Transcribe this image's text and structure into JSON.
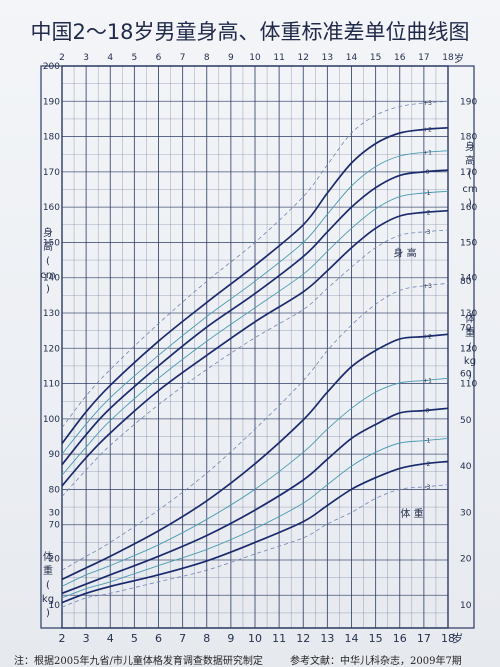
{
  "title": "中国2～18岁男童身高、体重标准差单位曲线图",
  "year_unit": "岁",
  "height_label": [
    "身",
    "高",
    "(",
    "cm",
    ")"
  ],
  "weight_label": [
    "体",
    "重",
    "(",
    "kg",
    ")"
  ],
  "height_curve_label": "身 高",
  "weight_curve_label": "体 重",
  "footer_left": "注：根据2005年九省/市儿童体格发育调查数据研究制定",
  "footer_right": "参考文献：中华儿科杂志，2009年7期",
  "colors": {
    "grid": "#2c3b63",
    "curve_main": "#1a2a6e",
    "curve_teal": "#4a9ab0",
    "curve_dashed": "#6f86b5",
    "title": "#202a4a"
  },
  "chart_data": {
    "type": "line",
    "x_ticks": [
      "2",
      "3",
      "4",
      "5",
      "6",
      "7",
      "8",
      "9",
      "10",
      "11",
      "12",
      "13",
      "14",
      "15",
      "16",
      "17",
      "18"
    ],
    "x_range": [
      2,
      18
    ],
    "height_axis": {
      "range": [
        60,
        200
      ],
      "tick_labels": [
        "200",
        "190",
        "180",
        "170",
        "160",
        "150",
        "140",
        "130",
        "120",
        "110",
        "100",
        "90",
        "80",
        "70"
      ],
      "right_tick_labels": [
        "190",
        "180",
        "170",
        "160",
        "150",
        "140",
        "130",
        "120",
        "110"
      ]
    },
    "weight_axis": {
      "range": [
        5,
        85
      ],
      "right_tick_labels": [
        "80",
        "70",
        "60",
        "50",
        "40",
        "30",
        "20",
        "10"
      ],
      "left_tick_labels": [
        "30",
        "20",
        "10"
      ]
    },
    "height_series": [
      {
        "sd": "+3",
        "style": "dashed",
        "points": [
          [
            2,
            97.5
          ],
          [
            3,
            106.5
          ],
          [
            4,
            114
          ],
          [
            6,
            127
          ],
          [
            8,
            139
          ],
          [
            10,
            150
          ],
          [
            12,
            163
          ],
          [
            13,
            172
          ],
          [
            14,
            181
          ],
          [
            15,
            186
          ],
          [
            16,
            188.5
          ],
          [
            17,
            189.5
          ],
          [
            18,
            190
          ]
        ]
      },
      {
        "sd": "+2",
        "style": "main",
        "points": [
          [
            2,
            93
          ],
          [
            3,
            102
          ],
          [
            4,
            109.5
          ],
          [
            6,
            122
          ],
          [
            8,
            133
          ],
          [
            10,
            143.5
          ],
          [
            12,
            155
          ],
          [
            13,
            164
          ],
          [
            14,
            172.5
          ],
          [
            15,
            178
          ],
          [
            16,
            181
          ],
          [
            17,
            182
          ],
          [
            18,
            182.5
          ]
        ]
      },
      {
        "sd": "+1",
        "style": "teal",
        "points": [
          [
            2,
            90
          ],
          [
            3,
            98.5
          ],
          [
            4,
            106
          ],
          [
            6,
            118
          ],
          [
            8,
            129
          ],
          [
            10,
            139
          ],
          [
            12,
            150
          ],
          [
            13,
            158
          ],
          [
            14,
            166
          ],
          [
            15,
            171.5
          ],
          [
            16,
            174.5
          ],
          [
            17,
            175.5
          ],
          [
            18,
            176
          ]
        ]
      },
      {
        "sd": "0",
        "style": "main",
        "points": [
          [
            2,
            87
          ],
          [
            3,
            95.5
          ],
          [
            4,
            103
          ],
          [
            6,
            115
          ],
          [
            8,
            126
          ],
          [
            10,
            135.5
          ],
          [
            12,
            146
          ],
          [
            13,
            153
          ],
          [
            14,
            160
          ],
          [
            15,
            165.5
          ],
          [
            16,
            169
          ],
          [
            17,
            170
          ],
          [
            18,
            170.5
          ]
        ]
      },
      {
        "sd": "-1",
        "style": "teal",
        "points": [
          [
            2,
            84
          ],
          [
            3,
            92
          ],
          [
            4,
            99.5
          ],
          [
            6,
            111.5
          ],
          [
            8,
            122
          ],
          [
            10,
            131.5
          ],
          [
            12,
            141
          ],
          [
            13,
            147.5
          ],
          [
            14,
            154
          ],
          [
            15,
            159.5
          ],
          [
            16,
            163
          ],
          [
            17,
            164
          ],
          [
            18,
            164.5
          ]
        ]
      },
      {
        "sd": "-2",
        "style": "main",
        "points": [
          [
            2,
            81
          ],
          [
            3,
            89
          ],
          [
            4,
            96
          ],
          [
            6,
            108
          ],
          [
            8,
            118
          ],
          [
            10,
            127.5
          ],
          [
            12,
            136
          ],
          [
            13,
            142
          ],
          [
            14,
            148.5
          ],
          [
            15,
            154
          ],
          [
            16,
            157.5
          ],
          [
            17,
            158.5
          ],
          [
            18,
            159
          ]
        ]
      },
      {
        "sd": "-3",
        "style": "dashed",
        "points": [
          [
            2,
            78
          ],
          [
            3,
            85.5
          ],
          [
            4,
            92.5
          ],
          [
            6,
            104
          ],
          [
            8,
            114
          ],
          [
            10,
            123
          ],
          [
            12,
            131
          ],
          [
            13,
            137
          ],
          [
            14,
            143
          ],
          [
            15,
            148.5
          ],
          [
            16,
            152
          ],
          [
            17,
            153
          ],
          [
            18,
            153.5
          ]
        ]
      }
    ],
    "weight_series": [
      {
        "sd": "+3",
        "style": "dashed",
        "points": [
          [
            2,
            17.5
          ],
          [
            3,
            20.5
          ],
          [
            4,
            23.5
          ],
          [
            6,
            30.5
          ],
          [
            8,
            38.5
          ],
          [
            10,
            48
          ],
          [
            12,
            58.5
          ],
          [
            13,
            65
          ],
          [
            14,
            70.5
          ],
          [
            15,
            75
          ],
          [
            16,
            78
          ],
          [
            17,
            79
          ],
          [
            18,
            79.5
          ]
        ]
      },
      {
        "sd": "+2",
        "style": "main",
        "points": [
          [
            2,
            15.5
          ],
          [
            3,
            18
          ],
          [
            4,
            20.5
          ],
          [
            6,
            26
          ],
          [
            8,
            32.5
          ],
          [
            10,
            40.5
          ],
          [
            12,
            50
          ],
          [
            13,
            56
          ],
          [
            14,
            61.5
          ],
          [
            15,
            65
          ],
          [
            16,
            67.5
          ],
          [
            17,
            68
          ],
          [
            18,
            68.5
          ]
        ]
      },
      {
        "sd": "+1",
        "style": "teal",
        "points": [
          [
            2,
            14
          ],
          [
            3,
            16.5
          ],
          [
            4,
            18.5
          ],
          [
            6,
            23
          ],
          [
            8,
            28.5
          ],
          [
            10,
            35
          ],
          [
            12,
            43
          ],
          [
            13,
            48
          ],
          [
            14,
            52.5
          ],
          [
            15,
            56
          ],
          [
            16,
            58
          ],
          [
            17,
            58.5
          ],
          [
            18,
            59
          ]
        ]
      },
      {
        "sd": "0",
        "style": "main",
        "points": [
          [
            2,
            12.5
          ],
          [
            3,
            14.5
          ],
          [
            4,
            16.5
          ],
          [
            6,
            20.5
          ],
          [
            8,
            25
          ],
          [
            10,
            30.5
          ],
          [
            12,
            37
          ],
          [
            13,
            41.5
          ],
          [
            14,
            46
          ],
          [
            15,
            49
          ],
          [
            16,
            51.5
          ],
          [
            17,
            52
          ],
          [
            18,
            52.5
          ]
        ]
      },
      {
        "sd": "-1",
        "style": "teal",
        "points": [
          [
            2,
            11.5
          ],
          [
            3,
            13.5
          ],
          [
            4,
            15
          ],
          [
            6,
            18.5
          ],
          [
            8,
            22
          ],
          [
            10,
            26.5
          ],
          [
            12,
            32
          ],
          [
            13,
            36
          ],
          [
            14,
            40
          ],
          [
            15,
            43
          ],
          [
            16,
            45
          ],
          [
            17,
            45.5
          ],
          [
            18,
            46
          ]
        ]
      },
      {
        "sd": "-2",
        "style": "main",
        "points": [
          [
            2,
            10.5
          ],
          [
            3,
            12.5
          ],
          [
            4,
            14
          ],
          [
            6,
            16.5
          ],
          [
            8,
            19.5
          ],
          [
            10,
            23.5
          ],
          [
            12,
            28
          ],
          [
            13,
            31.5
          ],
          [
            14,
            35
          ],
          [
            15,
            37.5
          ],
          [
            16,
            39.5
          ],
          [
            17,
            40.5
          ],
          [
            18,
            41
          ]
        ]
      },
      {
        "sd": "-3",
        "style": "dashed",
        "points": [
          [
            2,
            9.5
          ],
          [
            3,
            11.5
          ],
          [
            4,
            12.5
          ],
          [
            6,
            15
          ],
          [
            8,
            17.5
          ],
          [
            10,
            21
          ],
          [
            12,
            24.5
          ],
          [
            13,
            27.5
          ],
          [
            14,
            30
          ],
          [
            15,
            33
          ],
          [
            16,
            35
          ],
          [
            17,
            35.5
          ],
          [
            18,
            36
          ]
        ]
      }
    ]
  }
}
